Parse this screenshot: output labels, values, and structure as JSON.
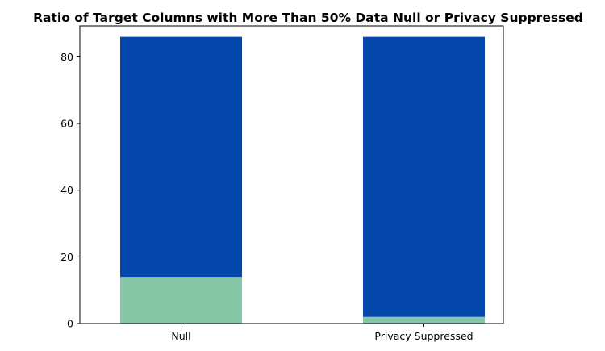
{
  "chart_data": {
    "type": "bar",
    "stacked": true,
    "title": "Ratio of Target Columns with More Than 50% Data Null or Privacy Suppressed",
    "xlabel": "",
    "ylabel": "",
    "categories": [
      "Null",
      "Privacy Suppressed"
    ],
    "series": [
      {
        "values": [
          14,
          2
        ],
        "color": "#85c7a7"
      },
      {
        "values": [
          72,
          84
        ],
        "color": "#0346ac"
      }
    ],
    "ylim": [
      0,
      86
    ],
    "yticks": [
      0,
      20,
      40,
      60,
      80
    ],
    "grid": false,
    "legend": "none"
  }
}
